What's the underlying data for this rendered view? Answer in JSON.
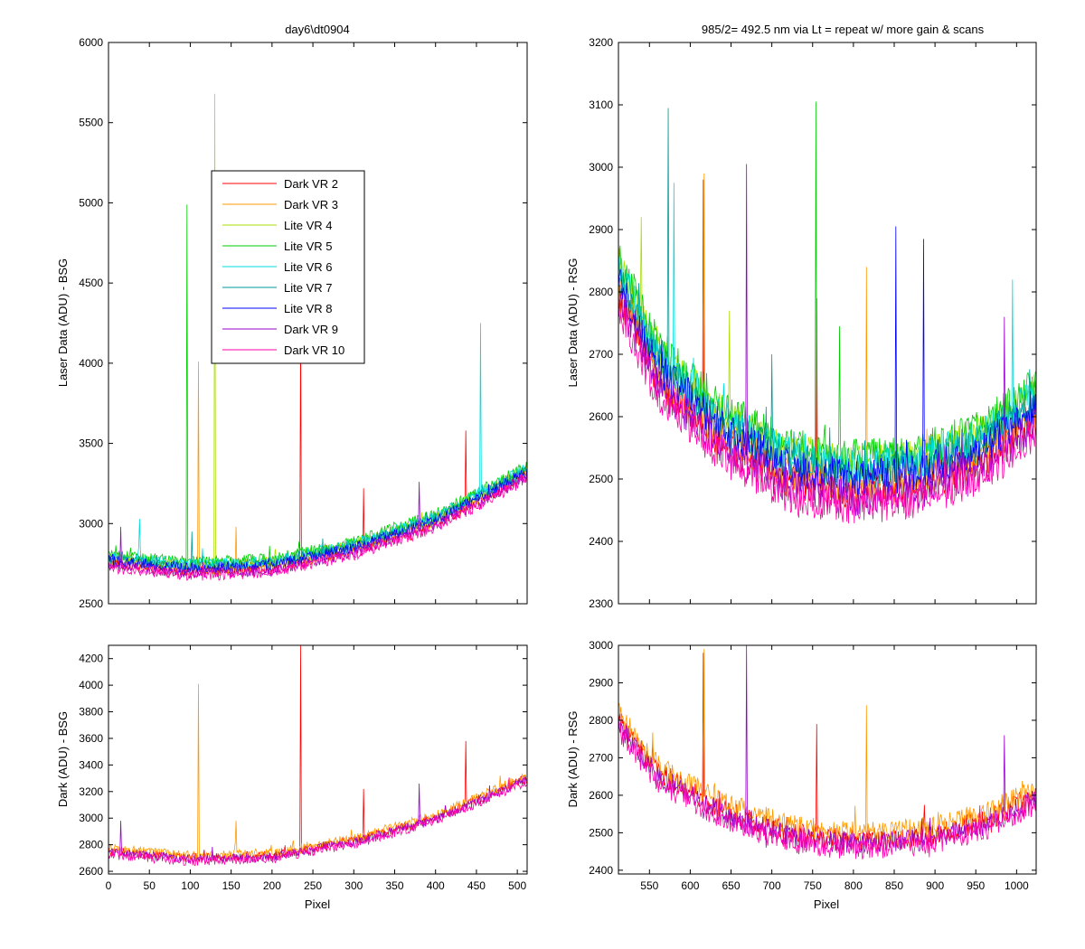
{
  "chart_data": [
    {
      "id": "bsg_laser",
      "type": "line",
      "title": "day6\\dt0904",
      "xlabel": "",
      "ylabel": "Laser Data (ADU) - BSG",
      "xlim": [
        0,
        512
      ],
      "ylim": [
        2500,
        6000
      ],
      "xticks": [
        0,
        50,
        100,
        150,
        200,
        250,
        300,
        350,
        400,
        450,
        500
      ],
      "xtick_labels_shown": false,
      "yticks": [
        2500,
        3000,
        3500,
        4000,
        4500,
        5000,
        5500,
        6000
      ],
      "legend": {
        "placement": "upper-left-center",
        "entries": [
          "Dark VR 2",
          "Dark VR 3",
          "Lite VR 4",
          "Lite VR 5",
          "Lite VR 6",
          "Lite VR 7",
          "Lite VR 8",
          "Dark VR 9",
          "Dark VR 10"
        ]
      },
      "baseline": {
        "x": [
          0,
          100,
          200,
          300,
          400,
          512
        ],
        "y": [
          2750,
          2700,
          2720,
          2830,
          3000,
          3300
        ]
      },
      "noise": 35,
      "series": [
        {
          "name": "Dark VR 2",
          "color": "#ff0000",
          "offset": 0,
          "spikes": [
            [
              235,
              4280
            ],
            [
              312,
              3220
            ],
            [
              437,
              3580
            ]
          ]
        },
        {
          "name": "Dark VR 3",
          "color": "#ff9900",
          "offset": 10,
          "spikes": [
            [
              110,
              4010
            ],
            [
              156,
              2980
            ]
          ]
        },
        {
          "name": "Lite VR 4",
          "color": "#aadd00",
          "offset": 40,
          "spikes": [
            [
              130,
              5680
            ]
          ]
        },
        {
          "name": "Lite VR 5",
          "color": "#00cc00",
          "offset": 60,
          "spikes": [
            [
              96,
              4990
            ]
          ]
        },
        {
          "name": "Lite VR 6",
          "color": "#00dddd",
          "offset": 45,
          "spikes": [
            [
              455,
              4250
            ],
            [
              38,
              3030
            ]
          ]
        },
        {
          "name": "Lite VR 7",
          "color": "#009999",
          "offset": 30,
          "spikes": [
            [
              102,
              2950
            ]
          ]
        },
        {
          "name": "Lite VR 8",
          "color": "#0000ff",
          "offset": 20,
          "spikes": []
        },
        {
          "name": "Dark VR 9",
          "color": "#9900cc",
          "offset": -10,
          "spikes": [
            [
              380,
              3260
            ],
            [
              15,
              2980
            ]
          ]
        },
        {
          "name": "Dark VR 10",
          "color": "#ff00aa",
          "offset": -25,
          "spikes": []
        }
      ]
    },
    {
      "id": "rsg_laser",
      "type": "line",
      "title": "985/2= 492.5 nm via Lt = repeat w/ more gain & scans",
      "xlabel": "",
      "ylabel": "Laser Data (ADU) - RSG",
      "xlim": [
        512,
        1024
      ],
      "ylim": [
        2300,
        3200
      ],
      "xticks": [
        550,
        600,
        650,
        700,
        750,
        800,
        850,
        900,
        950,
        1000
      ],
      "xtick_labels_shown": false,
      "yticks": [
        2300,
        2400,
        2500,
        2600,
        2700,
        2800,
        2900,
        3000,
        3100,
        3200
      ],
      "baseline": {
        "x": [
          512,
          560,
          640,
          720,
          800,
          880,
          960,
          1024
        ],
        "y": [
          2800,
          2660,
          2560,
          2500,
          2480,
          2490,
          2530,
          2600
        ]
      },
      "noise": 30,
      "series": [
        {
          "name": "Dark VR 2",
          "color": "#ff0000",
          "offset": 0,
          "spikes": [
            [
              616,
              2980
            ],
            [
              755,
              2790
            ]
          ]
        },
        {
          "name": "Dark VR 3",
          "color": "#ff9900",
          "offset": 10,
          "spikes": [
            [
              617,
              2990
            ],
            [
              816,
              2840
            ]
          ]
        },
        {
          "name": "Lite VR 4",
          "color": "#aadd00",
          "offset": 45,
          "spikes": [
            [
              540,
              2920
            ],
            [
              648,
              2770
            ]
          ]
        },
        {
          "name": "Lite VR 5",
          "color": "#00cc00",
          "offset": 55,
          "spikes": [
            [
              754,
              3105
            ],
            [
              783,
              2745
            ]
          ]
        },
        {
          "name": "Lite VR 6",
          "color": "#00dddd",
          "offset": 40,
          "spikes": [
            [
              580,
              2975
            ],
            [
              995,
              2820
            ]
          ]
        },
        {
          "name": "Lite VR 7",
          "color": "#009999",
          "offset": 30,
          "spikes": [
            [
              573,
              3095
            ],
            [
              700,
              2700
            ]
          ]
        },
        {
          "name": "Lite VR 8",
          "color": "#0000ff",
          "offset": 20,
          "spikes": [
            [
              852,
              2905
            ],
            [
              886,
              2885
            ]
          ]
        },
        {
          "name": "Dark VR 9",
          "color": "#9900cc",
          "offset": -10,
          "spikes": [
            [
              669,
              3005
            ],
            [
              985,
              2760
            ]
          ]
        },
        {
          "name": "Dark VR 10",
          "color": "#ff00aa",
          "offset": -25,
          "spikes": []
        }
      ]
    },
    {
      "id": "bsg_dark",
      "type": "line",
      "title": "",
      "xlabel": "Pixel",
      "ylabel": "Dark (ADU) - BSG",
      "xlim": [
        0,
        512
      ],
      "ylim": [
        2580,
        4300
      ],
      "xticks": [
        0,
        50,
        100,
        150,
        200,
        250,
        300,
        350,
        400,
        450,
        500
      ],
      "xtick_labels_shown": true,
      "yticks": [
        2600,
        2800,
        3000,
        3200,
        3400,
        3600,
        3800,
        4000,
        4200
      ],
      "baseline": {
        "x": [
          0,
          100,
          200,
          300,
          400,
          512
        ],
        "y": [
          2750,
          2700,
          2720,
          2830,
          3000,
          3300
        ]
      },
      "noise": 35,
      "series": [
        {
          "name": "Dark VR 2",
          "color": "#ff0000",
          "offset": 0,
          "spikes": [
            [
              235,
              4300
            ],
            [
              312,
              3220
            ],
            [
              437,
              3580
            ]
          ]
        },
        {
          "name": "Dark VR 3",
          "color": "#ff9900",
          "offset": 20,
          "spikes": [
            [
              110,
              4010
            ],
            [
              156,
              2980
            ]
          ]
        },
        {
          "name": "Dark VR 9",
          "color": "#9900cc",
          "offset": -10,
          "spikes": [
            [
              380,
              3260
            ],
            [
              15,
              2980
            ]
          ]
        },
        {
          "name": "Dark VR 10",
          "color": "#ff00aa",
          "offset": -25,
          "spikes": []
        }
      ]
    },
    {
      "id": "rsg_dark",
      "type": "line",
      "title": "",
      "xlabel": "Pixel",
      "ylabel": "Dark (ADU) - RSG",
      "xlim": [
        512,
        1024
      ],
      "ylim": [
        2390,
        3000
      ],
      "xticks": [
        550,
        600,
        650,
        700,
        750,
        800,
        850,
        900,
        950,
        1000
      ],
      "xtick_labels_shown": true,
      "yticks": [
        2400,
        2500,
        2600,
        2700,
        2800,
        2900,
        3000
      ],
      "baseline": {
        "x": [
          512,
          560,
          640,
          720,
          800,
          880,
          960,
          1024
        ],
        "y": [
          2800,
          2660,
          2560,
          2500,
          2480,
          2490,
          2530,
          2600
        ]
      },
      "noise": 30,
      "series": [
        {
          "name": "Dark VR 2",
          "color": "#ff0000",
          "offset": 0,
          "spikes": [
            [
              616,
              2980
            ],
            [
              755,
              2790
            ]
          ]
        },
        {
          "name": "Dark VR 3",
          "color": "#ff9900",
          "offset": 20,
          "spikes": [
            [
              617,
              2990
            ],
            [
              816,
              2840
            ]
          ]
        },
        {
          "name": "Dark VR 9",
          "color": "#9900cc",
          "offset": -10,
          "spikes": [
            [
              669,
              3000
            ],
            [
              985,
              2760
            ]
          ]
        },
        {
          "name": "Dark VR 10",
          "color": "#ff00aa",
          "offset": -25,
          "spikes": []
        }
      ]
    }
  ]
}
